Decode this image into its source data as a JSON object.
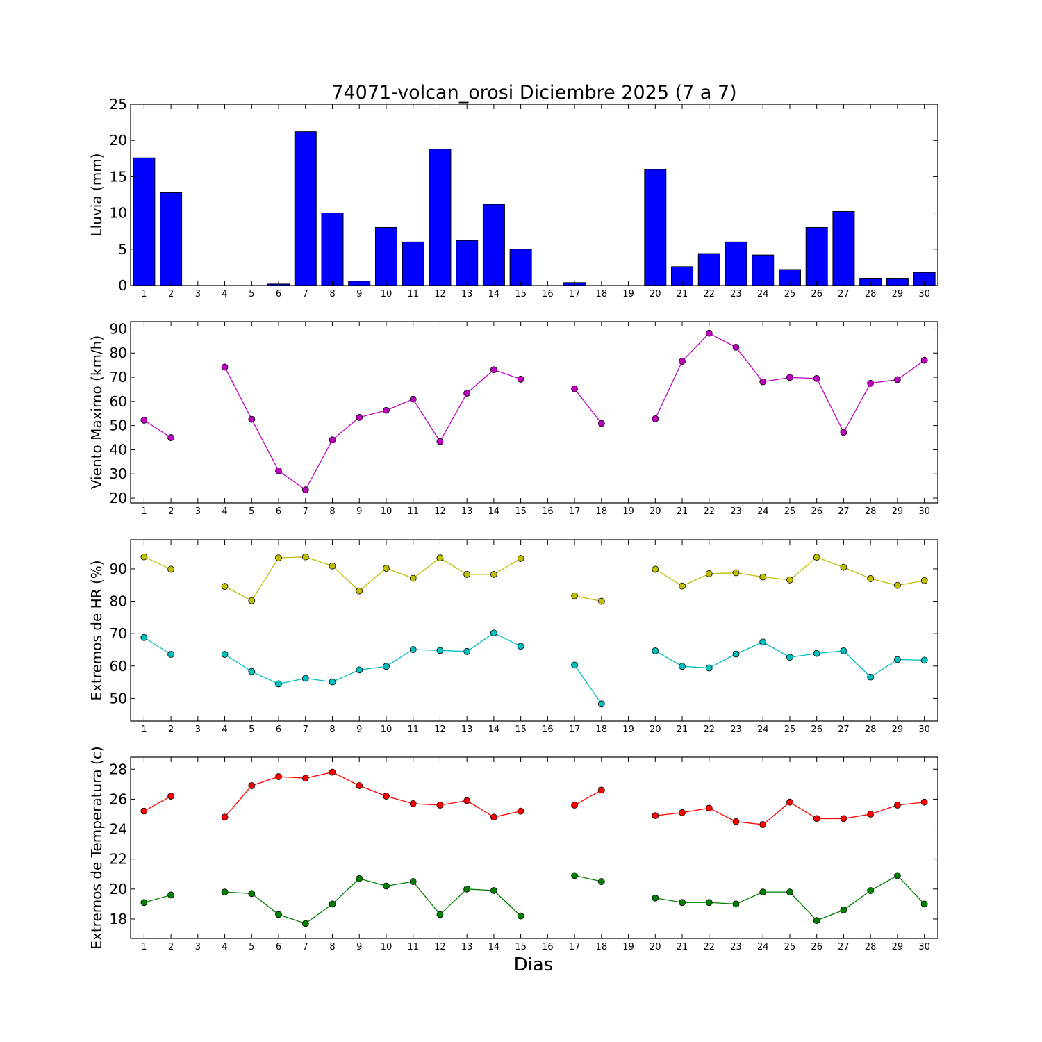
{
  "figure": {
    "title": "74071-volcan_orosi Diciembre 2025  (7 a 7)",
    "xlabel": "Dias"
  },
  "chart_data": [
    {
      "type": "bar",
      "ylabel": "Lluvia (mm)",
      "x": [
        1,
        2,
        3,
        4,
        5,
        6,
        7,
        8,
        9,
        10,
        11,
        12,
        13,
        14,
        15,
        16,
        17,
        18,
        19,
        20,
        21,
        22,
        23,
        24,
        25,
        26,
        27,
        28,
        29,
        30
      ],
      "values": [
        17.6,
        12.8,
        0,
        0,
        0,
        0.2,
        21.2,
        10.0,
        0.6,
        8.0,
        6.0,
        18.8,
        6.2,
        11.2,
        5.0,
        0,
        0.4,
        0,
        0,
        16.0,
        2.6,
        4.4,
        6.0,
        4.2,
        2.2,
        8.0,
        10.2,
        1.0,
        1.0,
        1.8
      ],
      "ylim": [
        0,
        25
      ],
      "yticks": [
        0,
        5,
        10,
        15,
        20,
        25
      ],
      "xlim": [
        0.5,
        30.5
      ],
      "bar_color": "#0000ff"
    },
    {
      "type": "line",
      "ylabel": "Viento Maximo (km/h)",
      "x": [
        1,
        2,
        3,
        4,
        5,
        6,
        7,
        8,
        9,
        10,
        11,
        12,
        13,
        14,
        15,
        16,
        17,
        18,
        19,
        20,
        21,
        22,
        23,
        24,
        25,
        26,
        27,
        28,
        29,
        30
      ],
      "series": [
        {
          "color": "#bf00bf",
          "values": [
            52.2,
            45.0,
            null,
            74.2,
            52.6,
            31.3,
            23.4,
            44.1,
            53.4,
            56.3,
            60.9,
            43.4,
            63.4,
            73.1,
            69.2,
            null,
            65.2,
            50.9,
            null,
            52.8,
            76.6,
            88.2,
            82.4,
            68.1,
            69.9,
            69.5,
            47.2,
            67.5,
            69.0,
            77.0
          ]
        }
      ],
      "ylim": [
        18,
        93
      ],
      "yticks": [
        20,
        30,
        40,
        50,
        60,
        70,
        80,
        90
      ],
      "xlim": [
        0.5,
        30.5
      ]
    },
    {
      "type": "line",
      "ylabel": "Extremos de HR (%)",
      "x": [
        1,
        2,
        3,
        4,
        5,
        6,
        7,
        8,
        9,
        10,
        11,
        12,
        13,
        14,
        15,
        16,
        17,
        18,
        19,
        20,
        21,
        22,
        23,
        24,
        25,
        26,
        27,
        28,
        29,
        30
      ],
      "series": [
        {
          "color": "#bfbf00",
          "values": [
            93.7,
            89.9,
            null,
            84.6,
            80.2,
            93.4,
            93.7,
            90.9,
            83.2,
            90.2,
            87.1,
            93.4,
            88.3,
            88.3,
            93.2,
            null,
            81.7,
            80.0,
            null,
            89.9,
            84.7,
            88.5,
            88.8,
            87.5,
            86.6,
            93.6,
            90.5,
            87.0,
            84.9,
            86.4
          ]
        },
        {
          "color": "#00bfbf",
          "values": [
            68.8,
            63.6,
            null,
            63.6,
            58.3,
            54.5,
            56.2,
            55.1,
            58.8,
            59.9,
            65.1,
            64.8,
            64.5,
            70.2,
            66.1,
            null,
            60.3,
            48.3,
            null,
            64.7,
            59.9,
            59.4,
            63.7,
            67.4,
            62.7,
            63.9,
            64.7,
            56.6,
            62.0,
            61.8
          ]
        }
      ],
      "ylim": [
        43,
        99
      ],
      "yticks": [
        50,
        60,
        70,
        80,
        90
      ],
      "xlim": [
        0.5,
        30.5
      ]
    },
    {
      "type": "line",
      "ylabel": "Extremos de Temperatura (c)",
      "x": [
        1,
        2,
        3,
        4,
        5,
        6,
        7,
        8,
        9,
        10,
        11,
        12,
        13,
        14,
        15,
        16,
        17,
        18,
        19,
        20,
        21,
        22,
        23,
        24,
        25,
        26,
        27,
        28,
        29,
        30
      ],
      "series": [
        {
          "color": "#ff0000",
          "values": [
            25.2,
            26.2,
            null,
            24.8,
            26.9,
            27.5,
            27.4,
            27.8,
            26.9,
            26.2,
            25.7,
            25.6,
            25.9,
            24.8,
            25.2,
            null,
            25.6,
            26.6,
            null,
            24.9,
            25.1,
            25.4,
            24.5,
            24.3,
            25.8,
            24.7,
            24.7,
            25.0,
            25.6,
            25.8
          ]
        },
        {
          "color": "#008000",
          "values": [
            19.1,
            19.6,
            null,
            19.8,
            19.7,
            18.3,
            17.7,
            19.0,
            20.7,
            20.2,
            20.5,
            18.3,
            20.0,
            19.9,
            18.2,
            null,
            20.9,
            20.5,
            null,
            19.4,
            19.1,
            19.1,
            19.0,
            19.8,
            19.8,
            17.9,
            18.6,
            19.9,
            20.9,
            19.0
          ]
        }
      ],
      "ylim": [
        16.7,
        28.8
      ],
      "yticks": [
        18,
        20,
        22,
        24,
        26,
        28
      ],
      "xlim": [
        0.5,
        30.5
      ]
    }
  ]
}
